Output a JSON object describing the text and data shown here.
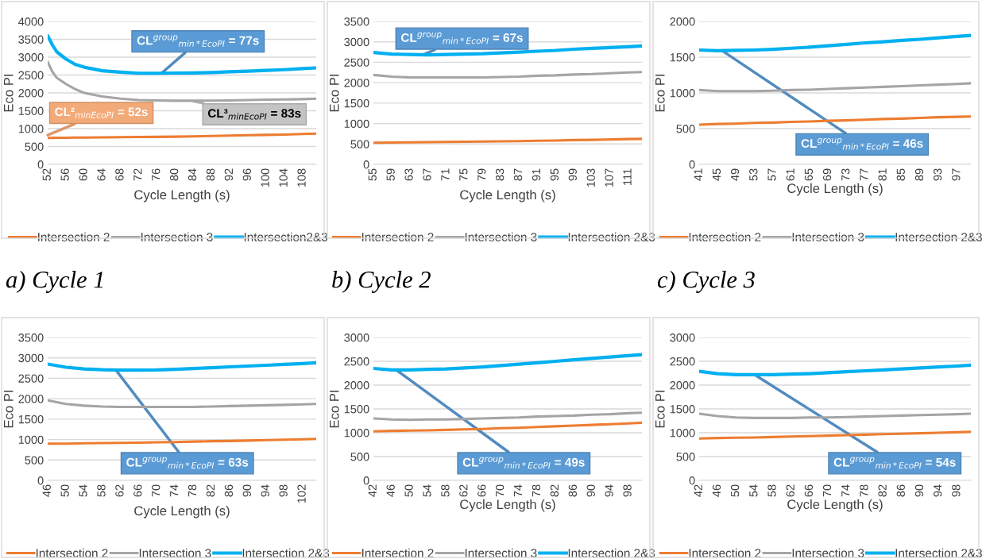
{
  "chart_data": [
    {
      "type": "line",
      "title": "a) Cycle 1",
      "xlabel": "Cycle Length (s)",
      "ylabel": "Eco PI",
      "xlim": [
        52,
        111
      ],
      "xticks": [
        52,
        56,
        60,
        64,
        68,
        72,
        76,
        80,
        84,
        88,
        92,
        96,
        100,
        104,
        108
      ],
      "ylim": [
        0,
        4000
      ],
      "yticks": [
        0,
        500,
        1000,
        1500,
        2000,
        2500,
        3000,
        3500,
        4000
      ],
      "grid": "y",
      "legend": "bottom",
      "x": [
        52,
        53,
        54,
        56,
        58,
        60,
        64,
        68,
        72,
        76,
        80,
        84,
        88,
        92,
        96,
        100,
        104,
        108,
        111
      ],
      "series": [
        {
          "name": "Intersection 2",
          "color": "#ed7d31",
          "values": [
            740,
            742,
            743,
            745,
            748,
            750,
            755,
            760,
            765,
            770,
            775,
            785,
            795,
            805,
            815,
            825,
            835,
            850,
            860
          ]
        },
        {
          "name": "Intersection 3",
          "color": "#a5a5a5",
          "values": [
            2870,
            2600,
            2420,
            2250,
            2110,
            2000,
            1900,
            1840,
            1800,
            1790,
            1780,
            1780,
            1785,
            1790,
            1800,
            1810,
            1815,
            1825,
            1840
          ]
        },
        {
          "name": "Intersection2&3",
          "color": "#00b0f0",
          "values": [
            3600,
            3350,
            3150,
            2950,
            2800,
            2720,
            2620,
            2580,
            2550,
            2550,
            2555,
            2560,
            2570,
            2590,
            2610,
            2630,
            2650,
            2680,
            2700
          ]
        }
      ],
      "annotations": [
        {
          "text": "CL$^{group}$$_{min*EcoPI}$ = 77s",
          "x": 77,
          "y": 2550
        },
        {
          "text": "CL²$_{minEcoPI}$ = 52s",
          "x": 52,
          "y": 820
        },
        {
          "text": "CL³$_{minEcoPI}$ = 83s",
          "x": 84,
          "y": 1770
        }
      ]
    },
    {
      "type": "line",
      "title": "b) Cycle 2",
      "xlabel": "Cycle Length (s)",
      "ylabel": "Eco PI",
      "xlim": [
        55,
        114
      ],
      "xticks": [
        55,
        59,
        63,
        67,
        71,
        75,
        79,
        83,
        87,
        91,
        95,
        99,
        103,
        107,
        111
      ],
      "ylim": [
        0,
        3500
      ],
      "yticks": [
        0,
        500,
        1000,
        1500,
        2000,
        2500,
        3000,
        3500
      ],
      "grid": "y",
      "legend": "bottom",
      "x": [
        55,
        59,
        63,
        67,
        71,
        75,
        79,
        83,
        87,
        91,
        95,
        99,
        103,
        107,
        111,
        114
      ],
      "series": [
        {
          "name": "Intersection 2",
          "color": "#ed7d31",
          "values": [
            530,
            535,
            540,
            545,
            550,
            555,
            560,
            565,
            570,
            580,
            585,
            595,
            600,
            610,
            620,
            625
          ]
        },
        {
          "name": "Intersection 3",
          "color": "#a5a5a5",
          "values": [
            2190,
            2150,
            2130,
            2130,
            2130,
            2130,
            2130,
            2140,
            2150,
            2170,
            2180,
            2200,
            2210,
            2230,
            2250,
            2260
          ]
        },
        {
          "name": "Intersection 2&3",
          "color": "#00b0f0",
          "values": [
            2740,
            2700,
            2690,
            2680,
            2690,
            2700,
            2710,
            2730,
            2750,
            2770,
            2790,
            2820,
            2840,
            2860,
            2880,
            2900
          ]
        }
      ],
      "annotations": [
        {
          "text": "CL$^{group}$$_{min*EcoPI}$ = 67s",
          "x": 66,
          "y": 2690
        }
      ]
    },
    {
      "type": "line",
      "title": "c) Cycle 3",
      "xlabel": "Cycle Length (s)",
      "ylabel": "Eco PI",
      "xlim": [
        41,
        100
      ],
      "xticks": [
        41,
        45,
        49,
        53,
        57,
        61,
        65,
        69,
        73,
        77,
        81,
        85,
        89,
        93,
        97
      ],
      "ylim": [
        0,
        2000
      ],
      "yticks": [
        0,
        500,
        1000,
        1500,
        2000
      ],
      "grid": "y",
      "legend": "bottom",
      "x": [
        41,
        45,
        49,
        53,
        57,
        61,
        65,
        69,
        73,
        77,
        81,
        85,
        89,
        93,
        97,
        100
      ],
      "series": [
        {
          "name": "Intersection 2",
          "color": "#ed7d31",
          "values": [
            555,
            565,
            570,
            580,
            585,
            595,
            600,
            610,
            615,
            625,
            635,
            640,
            650,
            660,
            665,
            670
          ]
        },
        {
          "name": "Intersection 3",
          "color": "#a5a5a5",
          "values": [
            1040,
            1025,
            1025,
            1025,
            1030,
            1040,
            1045,
            1055,
            1065,
            1075,
            1085,
            1095,
            1105,
            1115,
            1125,
            1135
          ]
        },
        {
          "name": "Intersection 2&3",
          "color": "#00b0f0",
          "values": [
            1600,
            1590,
            1595,
            1600,
            1610,
            1625,
            1640,
            1660,
            1680,
            1700,
            1715,
            1735,
            1750,
            1770,
            1790,
            1805
          ]
        }
      ],
      "annotations": [
        {
          "text": "CL$^{group}$$_{min*EcoPI}$ = 46s",
          "x": 46,
          "y": 1590
        }
      ]
    },
    {
      "type": "line",
      "xlabel": "Cycle Length (s)",
      "ylabel": "Eco PI",
      "xlim": [
        46,
        105
      ],
      "xticks": [
        46,
        50,
        54,
        58,
        62,
        66,
        70,
        74,
        78,
        82,
        86,
        90,
        94,
        98,
        102
      ],
      "ylim": [
        0,
        3500
      ],
      "yticks": [
        0,
        500,
        1000,
        1500,
        2000,
        2500,
        3000,
        3500
      ],
      "grid": "y",
      "legend": "bottom",
      "x": [
        46,
        50,
        54,
        58,
        62,
        66,
        70,
        74,
        78,
        82,
        86,
        90,
        94,
        98,
        102,
        105
      ],
      "series": [
        {
          "name": "Intersection 2",
          "color": "#ed7d31",
          "values": [
            900,
            900,
            910,
            915,
            920,
            925,
            935,
            940,
            950,
            960,
            965,
            975,
            985,
            995,
            1005,
            1015
          ]
        },
        {
          "name": "Intersection 3",
          "color": "#a5a5a5",
          "values": [
            1960,
            1870,
            1830,
            1810,
            1800,
            1800,
            1800,
            1800,
            1800,
            1810,
            1820,
            1830,
            1840,
            1850,
            1860,
            1870
          ]
        },
        {
          "name": "Intersection 2&3",
          "color": "#00b0f0",
          "values": [
            2850,
            2770,
            2730,
            2710,
            2700,
            2700,
            2705,
            2720,
            2740,
            2760,
            2780,
            2800,
            2820,
            2840,
            2860,
            2880
          ]
        }
      ],
      "annotations": [
        {
          "text": "CL$^{group}$$_{min*EcoPI}$ = 63s",
          "x": 61,
          "y": 2700
        }
      ]
    },
    {
      "type": "line",
      "xlabel": "Cycle Length (s)",
      "ylabel": "Eco PI",
      "xlim": [
        42,
        101
      ],
      "xticks": [
        42,
        46,
        50,
        54,
        58,
        62,
        66,
        70,
        74,
        78,
        82,
        86,
        90,
        94,
        98
      ],
      "ylim": [
        0,
        3000
      ],
      "yticks": [
        0,
        500,
        1000,
        1500,
        2000,
        2500,
        3000
      ],
      "grid": "y",
      "legend": "bottom",
      "x": [
        42,
        46,
        50,
        54,
        58,
        62,
        66,
        70,
        74,
        78,
        82,
        86,
        90,
        94,
        98,
        101
      ],
      "series": [
        {
          "name": "Intersection 2",
          "color": "#ed7d31",
          "values": [
            1030,
            1040,
            1045,
            1050,
            1060,
            1070,
            1080,
            1095,
            1105,
            1120,
            1135,
            1150,
            1165,
            1180,
            1195,
            1210
          ]
        },
        {
          "name": "Intersection 3",
          "color": "#a5a5a5",
          "values": [
            1300,
            1280,
            1270,
            1280,
            1280,
            1290,
            1300,
            1310,
            1320,
            1340,
            1350,
            1360,
            1380,
            1390,
            1410,
            1420
          ]
        },
        {
          "name": "Intersection 2&3",
          "color": "#00b0f0",
          "values": [
            2350,
            2320,
            2320,
            2330,
            2340,
            2360,
            2380,
            2410,
            2440,
            2470,
            2500,
            2530,
            2560,
            2590,
            2620,
            2640
          ]
        }
      ],
      "annotations": [
        {
          "text": "CL$^{group}$$_{min*EcoPI}$ = 49s",
          "x": 47,
          "y": 2320
        }
      ]
    },
    {
      "type": "line",
      "xlabel": "Cycle Length (s)",
      "ylabel": "Eco PI",
      "xlim": [
        42,
        101
      ],
      "xticks": [
        42,
        46,
        50,
        54,
        58,
        62,
        66,
        70,
        74,
        78,
        82,
        86,
        90,
        94,
        98
      ],
      "ylim": [
        0,
        3000
      ],
      "yticks": [
        0,
        500,
        1000,
        1500,
        2000,
        2500,
        3000
      ],
      "grid": "y",
      "legend": "bottom",
      "x": [
        42,
        46,
        50,
        54,
        58,
        62,
        66,
        70,
        74,
        78,
        82,
        86,
        90,
        94,
        98,
        101
      ],
      "series": [
        {
          "name": "Intersection 2",
          "color": "#ed7d31",
          "values": [
            880,
            890,
            895,
            900,
            910,
            920,
            930,
            940,
            950,
            960,
            970,
            980,
            990,
            1000,
            1010,
            1020
          ]
        },
        {
          "name": "Intersection 3",
          "color": "#a5a5a5",
          "values": [
            1400,
            1350,
            1320,
            1310,
            1310,
            1310,
            1320,
            1320,
            1330,
            1340,
            1350,
            1360,
            1370,
            1380,
            1390,
            1400
          ]
        },
        {
          "name": "Intersection 2&3",
          "color": "#00b0f0",
          "values": [
            2290,
            2240,
            2220,
            2220,
            2220,
            2230,
            2240,
            2260,
            2280,
            2300,
            2320,
            2340,
            2360,
            2380,
            2400,
            2420
          ]
        }
      ],
      "annotations": [
        {
          "text": "CL$^{group}$$_{min*EcoPI}$ = 54s",
          "x": 54,
          "y": 2220
        }
      ]
    }
  ]
}
